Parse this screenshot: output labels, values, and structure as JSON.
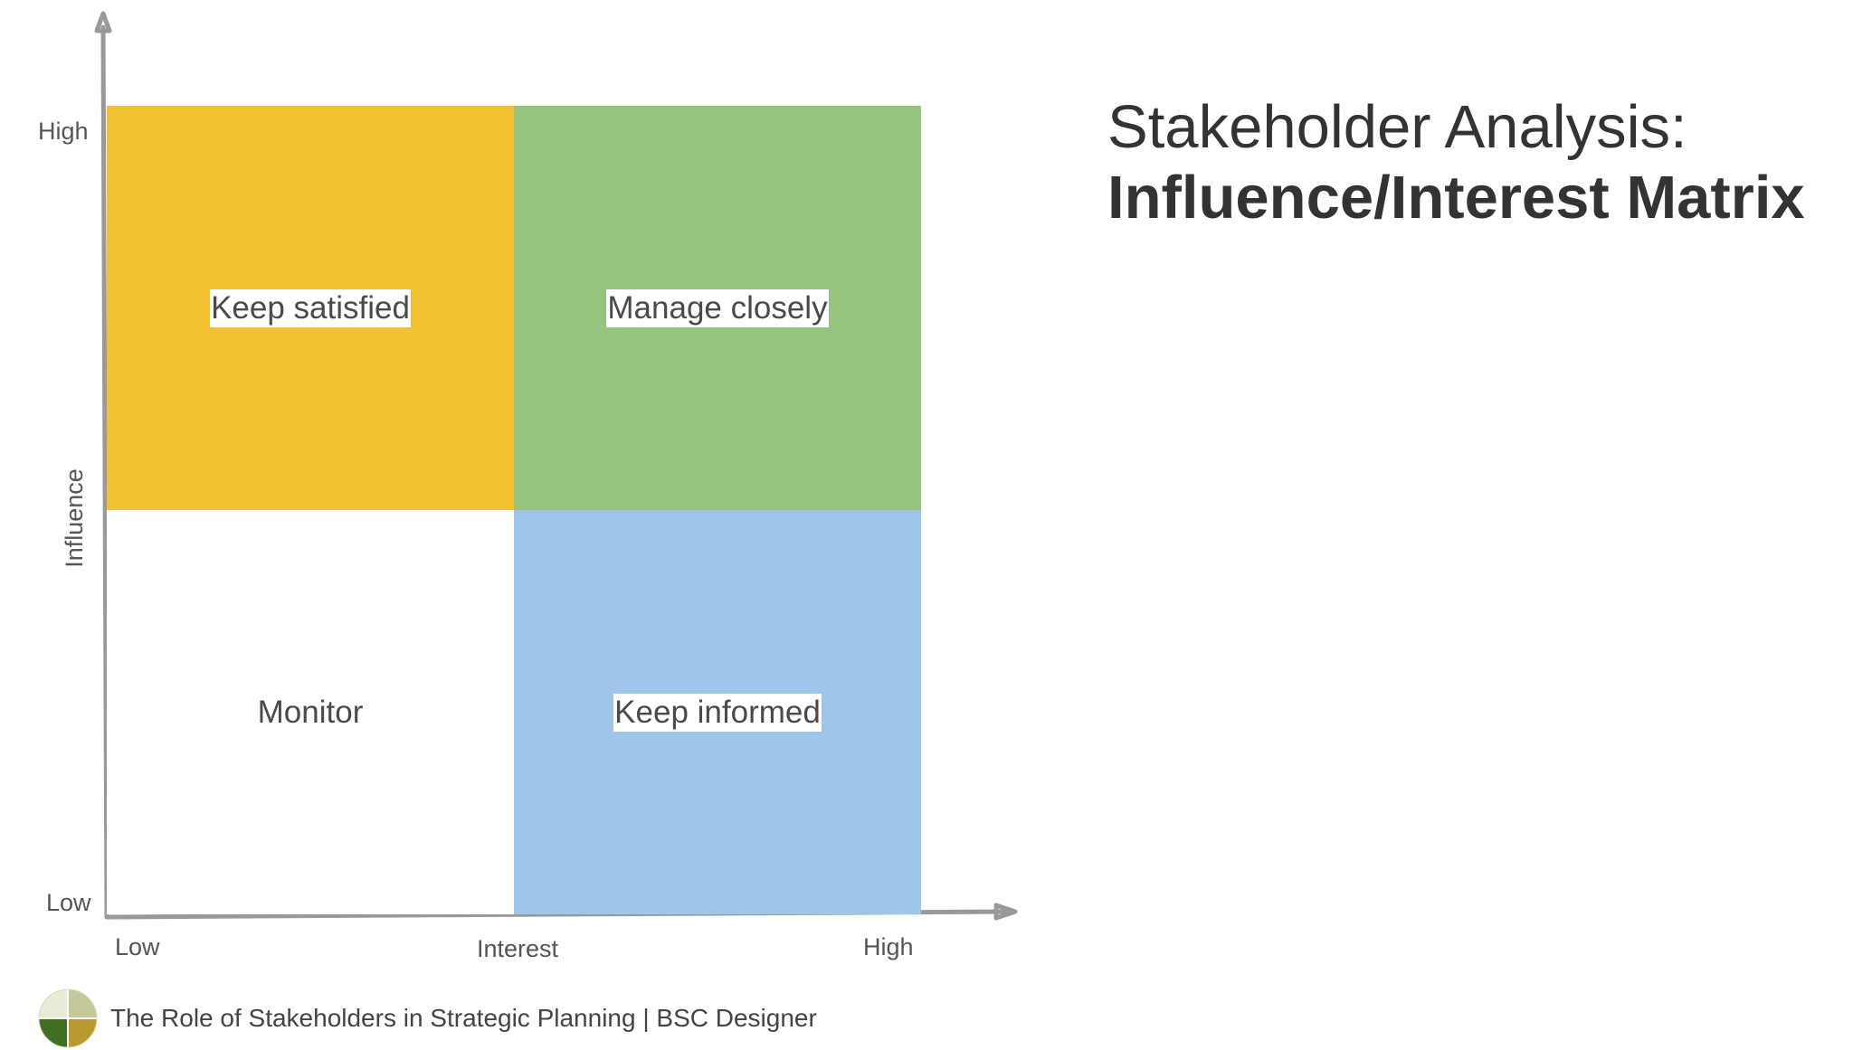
{
  "title": {
    "line1": "Stakeholder Analysis:",
    "line2": "Influence/Interest Matrix"
  },
  "axes": {
    "y_label": "Influence",
    "y_high": "High",
    "y_low": "Low",
    "x_label": "Interest",
    "x_low": "Low",
    "x_high": "High"
  },
  "quadrants": {
    "top_left": {
      "label": "Keep satisfied",
      "color": "#f0c232"
    },
    "top_right": {
      "label": "Manage closely",
      "color": "#96c47f"
    },
    "bottom_left": {
      "label": "Monitor",
      "color": "#ffffff"
    },
    "bottom_right": {
      "label": "Keep informed",
      "color": "#9fc5e8"
    }
  },
  "colors": {
    "axis": "#999999"
  },
  "footer": {
    "text": "The Role of Stakeholders in Strategic Planning | BSC Designer",
    "logo_icon": "bsc-designer-logo-icon"
  }
}
